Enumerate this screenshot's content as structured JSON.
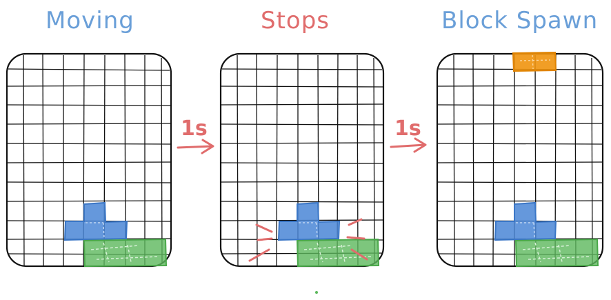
{
  "panels": [
    {
      "title": "Moving",
      "title_color": "#6a9fd8"
    },
    {
      "title": "Stops",
      "title_color": "#e06c6c"
    },
    {
      "title": "Block Spawn",
      "title_color": "#6a9fd8"
    }
  ],
  "transitions": [
    {
      "label": "1s",
      "color": "#e06c6c"
    },
    {
      "label": "1s",
      "color": "#e06c6c"
    }
  ],
  "colors": {
    "grid": "#111111",
    "blue_block": "#4a86d6",
    "green_block": "#5cb85c",
    "orange_block": "#f0930e",
    "impact_marks": "#e06c6c",
    "dot": "#5cb85c"
  }
}
